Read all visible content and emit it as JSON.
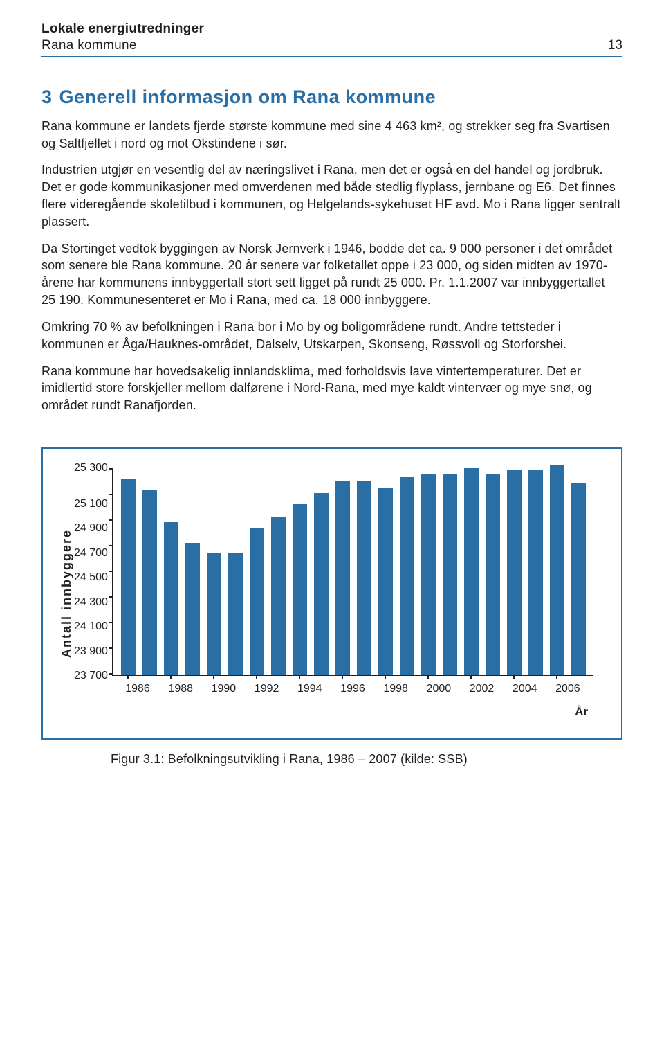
{
  "header": {
    "doc_title": "Lokale energiutredninger",
    "doc_subtitle": "Rana kommune",
    "page_number": "13"
  },
  "heading": {
    "number": "3",
    "title": "Generell informasjon om Rana kommune"
  },
  "paragraphs": {
    "p1": "Rana kommune er landets fjerde største kommune med sine 4 463 km², og strekker seg fra Svartisen og Saltfjellet i nord og mot Okstindene i sør.",
    "p2": "Industrien utgjør en vesentlig del av næringslivet i Rana, men det er også en del handel og jordbruk. Det er gode kommunikasjoner med omverdenen med både stedlig flyplass, jernbane og E6. Det finnes flere videregående skoletilbud i kommunen, og Helgelands-sykehuset HF avd. Mo i Rana ligger sentralt plassert.",
    "p3": "Da Stortinget vedtok byggingen av Norsk Jernverk i 1946, bodde det ca. 9 000 personer i det området som senere ble Rana kommune. 20 år senere var folketallet oppe i 23 000, og siden midten av 1970-årene har kommunens innbyggertall stort sett ligget på rundt 25 000. Pr. 1.1.2007 var innbyggertallet 25 190. Kommunesenteret er Mo i Rana, med ca. 18 000 innbyggere.",
    "p4": "Omkring 70 % av befolkningen i Rana bor i Mo by og boligområdene rundt. Andre tettsteder i kommunen er Åga/Hauknes-området, Dalselv, Utskarpen, Skonseng, Røssvoll og Storforshei.",
    "p5": "Rana kommune har hovedsakelig innlandsklima, med forholdsvis lave vintertemperaturer. Det er imidlertid store forskjeller mellom dalførene i Nord-Rana, med mye kaldt vintervær og mye snø, og området rundt Ranafjorden."
  },
  "chart": {
    "type": "bar",
    "y_label": "Antall innbyggere",
    "x_label": "År",
    "y_ticks": [
      "25 300",
      "25 100",
      "24 900",
      "24 700",
      "24 500",
      "24 300",
      "24 100",
      "23 900",
      "23 700"
    ],
    "ylim": [
      23700,
      25300
    ],
    "x_tick_labels": [
      "1986",
      "1988",
      "1990",
      "1992",
      "1994",
      "1996",
      "1998",
      "2000",
      "2002",
      "2004",
      "2006"
    ],
    "years": [
      1986,
      1987,
      1988,
      1989,
      1990,
      1991,
      1992,
      1993,
      1994,
      1995,
      1996,
      1997,
      1998,
      1999,
      2000,
      2001,
      2002,
      2003,
      2004,
      2005,
      2006,
      2007
    ],
    "values": [
      25220,
      25130,
      24880,
      24720,
      24640,
      24640,
      24840,
      24920,
      25020,
      25110,
      25200,
      25200,
      25150,
      25230,
      25250,
      25250,
      25300,
      25250,
      25290,
      25290,
      25320,
      25190
    ],
    "bar_color": "#2a6ea6",
    "axis_color": "#231f20",
    "border_color": "#2a6ea6",
    "background_color": "#ffffff",
    "caption": "Figur 3.1:  Befolkningsutvikling i Rana, 1986 – 2007  (kilde: SSB)"
  }
}
